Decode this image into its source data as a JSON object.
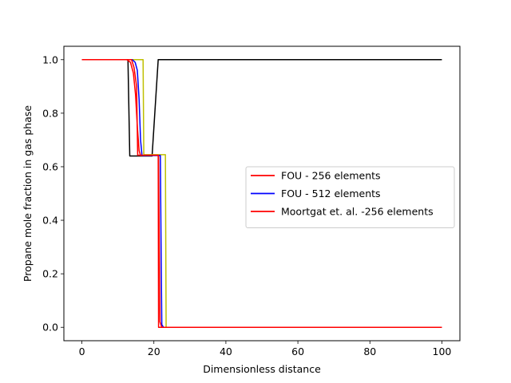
{
  "chart_data": {
    "type": "line",
    "title": "",
    "xlabel": "Dimensionless distance",
    "ylabel": "Propane mole fraction in gas phase",
    "xlim": [
      -5,
      105
    ],
    "ylim": [
      -0.05,
      1.05
    ],
    "xticks": [
      0,
      20,
      40,
      60,
      80,
      100
    ],
    "yticks": [
      0.0,
      0.2,
      0.4,
      0.6,
      0.8,
      1.0
    ],
    "xtick_labels": [
      "0",
      "20",
      "40",
      "60",
      "80",
      "100"
    ],
    "ytick_labels": [
      "0.0",
      "0.2",
      "0.4",
      "0.6",
      "0.8",
      "1.0"
    ],
    "grid": false,
    "legend_position": "center-right",
    "series": [
      {
        "name": "",
        "color": "#000000",
        "in_legend": false,
        "x": [
          0,
          12.8,
          13.3,
          19.5,
          21.2,
          100
        ],
        "y": [
          1.0,
          1.0,
          0.64,
          0.64,
          1.0,
          1.0
        ]
      },
      {
        "name": "",
        "color": "#bfbf00",
        "in_legend": false,
        "x": [
          0,
          17.0,
          17.2,
          23.2,
          23.4,
          100
        ],
        "y": [
          1.0,
          1.0,
          0.645,
          0.645,
          0.0,
          0.0
        ]
      },
      {
        "name": "FOU - 256 elements",
        "color": "#ff0000",
        "in_legend": true,
        "x": [
          0,
          12.5,
          13.5,
          14.3,
          14.9,
          15.4,
          15.9,
          16.3,
          21.3,
          21.5,
          21.7,
          22.2,
          100
        ],
        "y": [
          1.0,
          1.0,
          0.99,
          0.95,
          0.87,
          0.75,
          0.66,
          0.642,
          0.642,
          0.3,
          0.02,
          0.0,
          0.0
        ]
      },
      {
        "name": "FOU - 512 elements",
        "color": "#0000ff",
        "in_legend": true,
        "x": [
          0,
          14.0,
          14.8,
          15.4,
          15.9,
          16.3,
          16.7,
          21.8,
          22.0,
          22.2,
          22.7,
          100
        ],
        "y": [
          1.0,
          1.0,
          0.99,
          0.96,
          0.85,
          0.7,
          0.642,
          0.642,
          0.3,
          0.01,
          0.0,
          0.0
        ]
      },
      {
        "name": "Moortgat et. al. -256 elements",
        "color": "#ff0000",
        "in_legend": true,
        "x": [
          0,
          13.8,
          14.5,
          15.2,
          15.5,
          21.2,
          21.3,
          100
        ],
        "y": [
          1.0,
          1.0,
          0.97,
          0.9,
          0.643,
          0.643,
          0.0,
          0.0
        ]
      }
    ]
  }
}
